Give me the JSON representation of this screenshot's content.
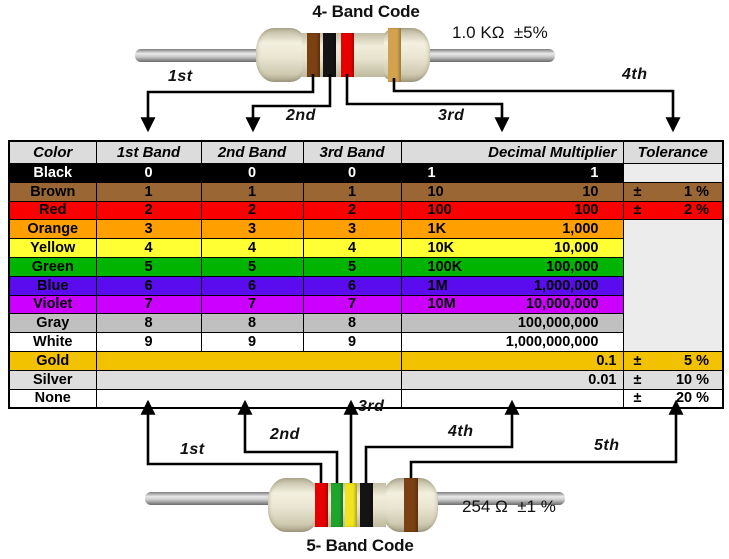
{
  "top_resistor": {
    "title": "4- Band Code",
    "value_label": "1.0 KΩ  ±5%",
    "band_colors": [
      "brown",
      "black",
      "red",
      "gold"
    ],
    "arrow_labels": [
      "1st",
      "2nd",
      "3rd",
      "4th"
    ]
  },
  "bottom_resistor": {
    "title": "5- Band Code",
    "value_label": "254 Ω  ±1 %",
    "band_colors": [
      "red",
      "green",
      "yellow",
      "black",
      "brown"
    ],
    "arrow_labels": [
      "1st",
      "2nd",
      "3rd",
      "4th",
      "5th"
    ]
  },
  "band_palette": {
    "brown": "#7B4113",
    "black": "#141414",
    "red": "#E60000",
    "gold": "#D2A24E",
    "green": "#21A42B",
    "yellow": "#F0E41E"
  },
  "table": {
    "headers": [
      "Color",
      "1st Band",
      "2nd Band",
      "3rd Band",
      "Decimal Multiplier",
      "Tolerance"
    ],
    "empty_tolerance_bg": "#ECECEC",
    "header_bg": "#DCDCDC",
    "rows": [
      {
        "name": "Black",
        "band1": "0",
        "band2": "0",
        "band3": "0",
        "mult_short": "1",
        "mult_full": "1",
        "tolerance": null,
        "bg": "#000000",
        "fg": "#FFFFFF",
        "tol_bg": "#ECECEC"
      },
      {
        "name": "Brown",
        "band1": "1",
        "band2": "1",
        "band3": "1",
        "mult_short": "10",
        "mult_full": "10",
        "tolerance": {
          "sign": "±",
          "value": "1 %"
        },
        "bg": "#9A6633",
        "fg": "#000000"
      },
      {
        "name": "Red",
        "band1": "2",
        "band2": "2",
        "band3": "2",
        "mult_short": "100",
        "mult_full": "100",
        "tolerance": {
          "sign": "±",
          "value": "2 %"
        },
        "bg": "#FA0000",
        "fg": "#000000"
      },
      {
        "name": "Orange",
        "band1": "3",
        "band2": "3",
        "band3": "3",
        "mult_short": "1K",
        "mult_full": "1,000",
        "tolerance": null,
        "bg": "#FFA000",
        "fg": "#000000"
      },
      {
        "name": "Yellow",
        "band1": "4",
        "band2": "4",
        "band3": "4",
        "mult_short": "10K",
        "mult_full": "10,000",
        "tolerance": null,
        "bg": "#FFFF33",
        "fg": "#000000"
      },
      {
        "name": "Green",
        "band1": "5",
        "band2": "5",
        "band3": "5",
        "mult_short": "100K",
        "mult_full": "100,000",
        "tolerance": null,
        "bg": "#00B400",
        "fg": "#000000"
      },
      {
        "name": "Blue",
        "band1": "6",
        "band2": "6",
        "band3": "6",
        "mult_short": "1M",
        "mult_full": "1,000,000",
        "tolerance": null,
        "bg": "#5A0CEE",
        "fg": "#000000"
      },
      {
        "name": "Violet",
        "band1": "7",
        "band2": "7",
        "band3": "7",
        "mult_short": "10M",
        "mult_full": "10,000,000",
        "tolerance": null,
        "bg": "#CC00FF",
        "fg": "#000000"
      },
      {
        "name": "Gray",
        "band1": "8",
        "band2": "8",
        "band3": "8",
        "mult_short": "",
        "mult_full": "100,000,000",
        "tolerance": null,
        "bg": "#C0C0C0",
        "fg": "#000000"
      },
      {
        "name": "White",
        "band1": "9",
        "band2": "9",
        "band3": "9",
        "mult_short": "",
        "mult_full": "1,000,000,000",
        "tolerance": null,
        "bg": "#FFFFFF",
        "fg": "#000000"
      },
      {
        "name": "Gold",
        "band1": null,
        "band2": null,
        "band3": null,
        "mult_short": "",
        "mult_full": "0.1",
        "tolerance": {
          "sign": "±",
          "value": "5 %"
        },
        "bg": "#F2C100",
        "fg": "#000000"
      },
      {
        "name": "Silver",
        "band1": null,
        "band2": null,
        "band3": null,
        "mult_short": "",
        "mult_full": "0.01",
        "tolerance": {
          "sign": "±",
          "value": "10 %"
        },
        "bg": "#DEDEDE",
        "fg": "#000000"
      },
      {
        "name": "None",
        "band1": null,
        "band2": null,
        "band3": null,
        "mult_short": "",
        "mult_full": "",
        "tolerance": {
          "sign": "±",
          "value": "20 %"
        },
        "bg": "#FFFFFF",
        "fg": "#000000"
      }
    ]
  }
}
